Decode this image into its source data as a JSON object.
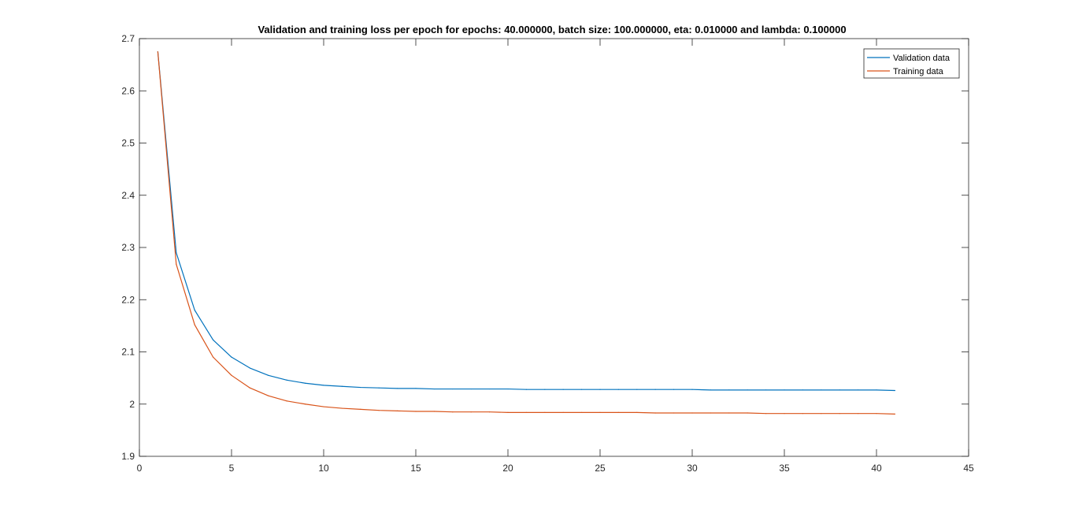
{
  "chart_data": {
    "type": "line",
    "title": "Validation and training loss per epoch for epochs: 40.000000, batch size: 100.000000, eta: 0.010000 and lambda: 0.100000",
    "xlabel": "",
    "ylabel": "",
    "xlim": [
      0,
      45
    ],
    "ylim": [
      1.9,
      2.7
    ],
    "xticks": [
      0,
      5,
      10,
      15,
      20,
      25,
      30,
      35,
      40,
      45
    ],
    "xtick_labels": [
      "0",
      "5",
      "10",
      "15",
      "20",
      "25",
      "30",
      "35",
      "40",
      "45"
    ],
    "yticks": [
      1.9,
      2.0,
      2.1,
      2.2,
      2.3,
      2.4,
      2.5,
      2.6,
      2.7
    ],
    "ytick_labels": [
      "1.9",
      "2",
      "2.1",
      "2.2",
      "2.3",
      "2.4",
      "2.5",
      "2.6",
      "2.7"
    ],
    "grid": false,
    "legend_position": "top-right",
    "x": [
      1,
      2,
      3,
      4,
      5,
      6,
      7,
      8,
      9,
      10,
      11,
      12,
      13,
      14,
      15,
      16,
      17,
      18,
      19,
      20,
      21,
      22,
      23,
      24,
      25,
      26,
      27,
      28,
      29,
      30,
      31,
      32,
      33,
      34,
      35,
      36,
      37,
      38,
      39,
      40,
      41
    ],
    "series": [
      {
        "name": "Validation data",
        "color": "#0072BD",
        "values": [
          2.675,
          2.29,
          2.18,
          2.123,
          2.09,
          2.069,
          2.055,
          2.046,
          2.04,
          2.036,
          2.034,
          2.032,
          2.031,
          2.03,
          2.03,
          2.029,
          2.029,
          2.029,
          2.029,
          2.029,
          2.028,
          2.028,
          2.028,
          2.028,
          2.028,
          2.028,
          2.028,
          2.028,
          2.028,
          2.028,
          2.027,
          2.027,
          2.027,
          2.027,
          2.027,
          2.027,
          2.027,
          2.027,
          2.027,
          2.027,
          2.026
        ]
      },
      {
        "name": "Training data",
        "color": "#D95319",
        "values": [
          2.675,
          2.268,
          2.152,
          2.09,
          2.055,
          2.031,
          2.016,
          2.006,
          2.0,
          1.995,
          1.992,
          1.99,
          1.988,
          1.987,
          1.986,
          1.986,
          1.985,
          1.985,
          1.985,
          1.984,
          1.984,
          1.984,
          1.984,
          1.984,
          1.984,
          1.984,
          1.984,
          1.983,
          1.983,
          1.983,
          1.983,
          1.983,
          1.983,
          1.982,
          1.982,
          1.982,
          1.982,
          1.982,
          1.982,
          1.982,
          1.981
        ]
      }
    ]
  }
}
